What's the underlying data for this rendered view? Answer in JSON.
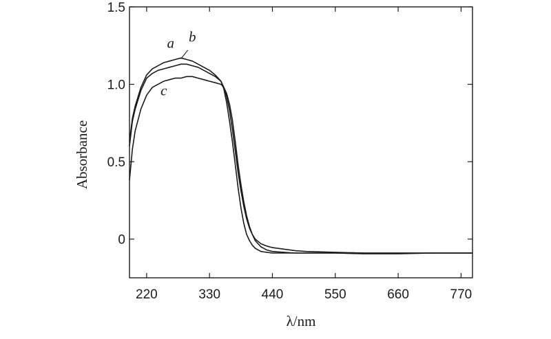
{
  "chart_data": {
    "type": "line",
    "xlabel": "λ/nm",
    "ylabel": "Absorbance",
    "xlim": [
      190,
      790
    ],
    "ylim": [
      -0.25,
      1.5
    ],
    "xticks": [
      220,
      330,
      440,
      550,
      660,
      770
    ],
    "yticks": [
      0,
      0.5,
      1.0,
      1.5
    ],
    "ytick_labels": [
      "0",
      "0.5",
      "1.0",
      "1.5"
    ],
    "grid": false,
    "series": [
      {
        "name": "a",
        "label": "a",
        "x": [
          190,
          195,
          200,
          210,
          220,
          230,
          240,
          250,
          260,
          270,
          280,
          290,
          300,
          310,
          320,
          330,
          340,
          350,
          355,
          360,
          365,
          370,
          375,
          380,
          385,
          390,
          395,
          400,
          405,
          410,
          420,
          430,
          440,
          460,
          480,
          500,
          550,
          600,
          660,
          720,
          790
        ],
        "y": [
          0.63,
          0.78,
          0.86,
          0.98,
          1.06,
          1.1,
          1.12,
          1.14,
          1.15,
          1.16,
          1.17,
          1.16,
          1.15,
          1.13,
          1.11,
          1.09,
          1.06,
          1.02,
          0.97,
          0.88,
          0.76,
          0.63,
          0.48,
          0.33,
          0.2,
          0.1,
          0.03,
          -0.01,
          -0.04,
          -0.06,
          -0.08,
          -0.085,
          -0.09,
          -0.09,
          -0.09,
          -0.09,
          -0.09,
          -0.09,
          -0.09,
          -0.09,
          -0.09
        ]
      },
      {
        "name": "b",
        "label": "b",
        "x": [
          190,
          195,
          200,
          210,
          220,
          230,
          240,
          250,
          260,
          270,
          280,
          290,
          300,
          310,
          320,
          330,
          340,
          350,
          355,
          360,
          365,
          370,
          375,
          380,
          385,
          390,
          395,
          400,
          405,
          410,
          420,
          430,
          440,
          460,
          480,
          500,
          550,
          600,
          660,
          720,
          790
        ],
        "y": [
          0.6,
          0.76,
          0.84,
          0.96,
          1.04,
          1.07,
          1.09,
          1.1,
          1.11,
          1.12,
          1.13,
          1.13,
          1.12,
          1.11,
          1.09,
          1.07,
          1.05,
          1.02,
          0.98,
          0.92,
          0.83,
          0.71,
          0.57,
          0.43,
          0.31,
          0.21,
          0.13,
          0.07,
          0.03,
          0.0,
          -0.03,
          -0.045,
          -0.055,
          -0.065,
          -0.075,
          -0.08,
          -0.085,
          -0.09,
          -0.09,
          -0.09,
          -0.09
        ]
      },
      {
        "name": "c",
        "label": "c",
        "x": [
          190,
          195,
          200,
          210,
          220,
          230,
          240,
          250,
          260,
          270,
          280,
          290,
          300,
          310,
          320,
          330,
          340,
          350,
          355,
          360,
          365,
          370,
          375,
          380,
          385,
          390,
          395,
          400,
          405,
          410,
          420,
          430,
          440,
          460,
          480,
          500,
          550,
          600,
          660,
          720,
          790
        ],
        "y": [
          0.38,
          0.58,
          0.7,
          0.84,
          0.93,
          0.98,
          1.0,
          1.02,
          1.03,
          1.04,
          1.04,
          1.05,
          1.05,
          1.04,
          1.03,
          1.02,
          1.01,
          1.0,
          0.98,
          0.94,
          0.87,
          0.77,
          0.63,
          0.48,
          0.35,
          0.24,
          0.15,
          0.08,
          0.03,
          -0.01,
          -0.05,
          -0.07,
          -0.08,
          -0.085,
          -0.09,
          -0.09,
          -0.09,
          -0.095,
          -0.095,
          -0.09,
          -0.09
        ]
      }
    ]
  }
}
